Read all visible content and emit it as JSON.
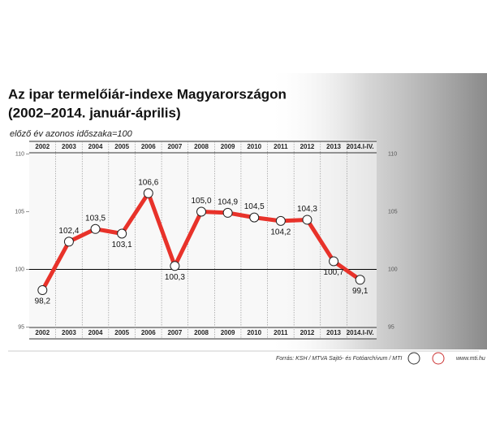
{
  "chart_data": {
    "type": "line",
    "title": "Az ipar termelőiár-indexe Magyarországon",
    "title_line2": "(2002–2014. január-április)",
    "subtitle": "előző év azonos időszaka=100",
    "categories": [
      "2002",
      "2003",
      "2004",
      "2005",
      "2006",
      "2007",
      "2008",
      "2009",
      "2010",
      "2011",
      "2012",
      "2013",
      "2014.I-IV."
    ],
    "values": [
      98.2,
      102.4,
      103.5,
      103.1,
      106.6,
      100.3,
      105.0,
      104.9,
      104.5,
      104.2,
      104.3,
      100.7,
      99.1
    ],
    "value_labels": [
      "98,2",
      "102,4",
      "103,5",
      "103,1",
      "106,6",
      "100,3",
      "105,0",
      "104,9",
      "104,5",
      "104,2",
      "104,3",
      "100,7",
      "99,1"
    ],
    "color": "#e8322a",
    "ylim": [
      95,
      110
    ],
    "yticks": [
      95,
      100,
      105,
      110
    ],
    "source": "Forrás: KSH / MTVA Sajtó- és Fotóarchívum / MTI",
    "website": "www.mti.hu"
  }
}
